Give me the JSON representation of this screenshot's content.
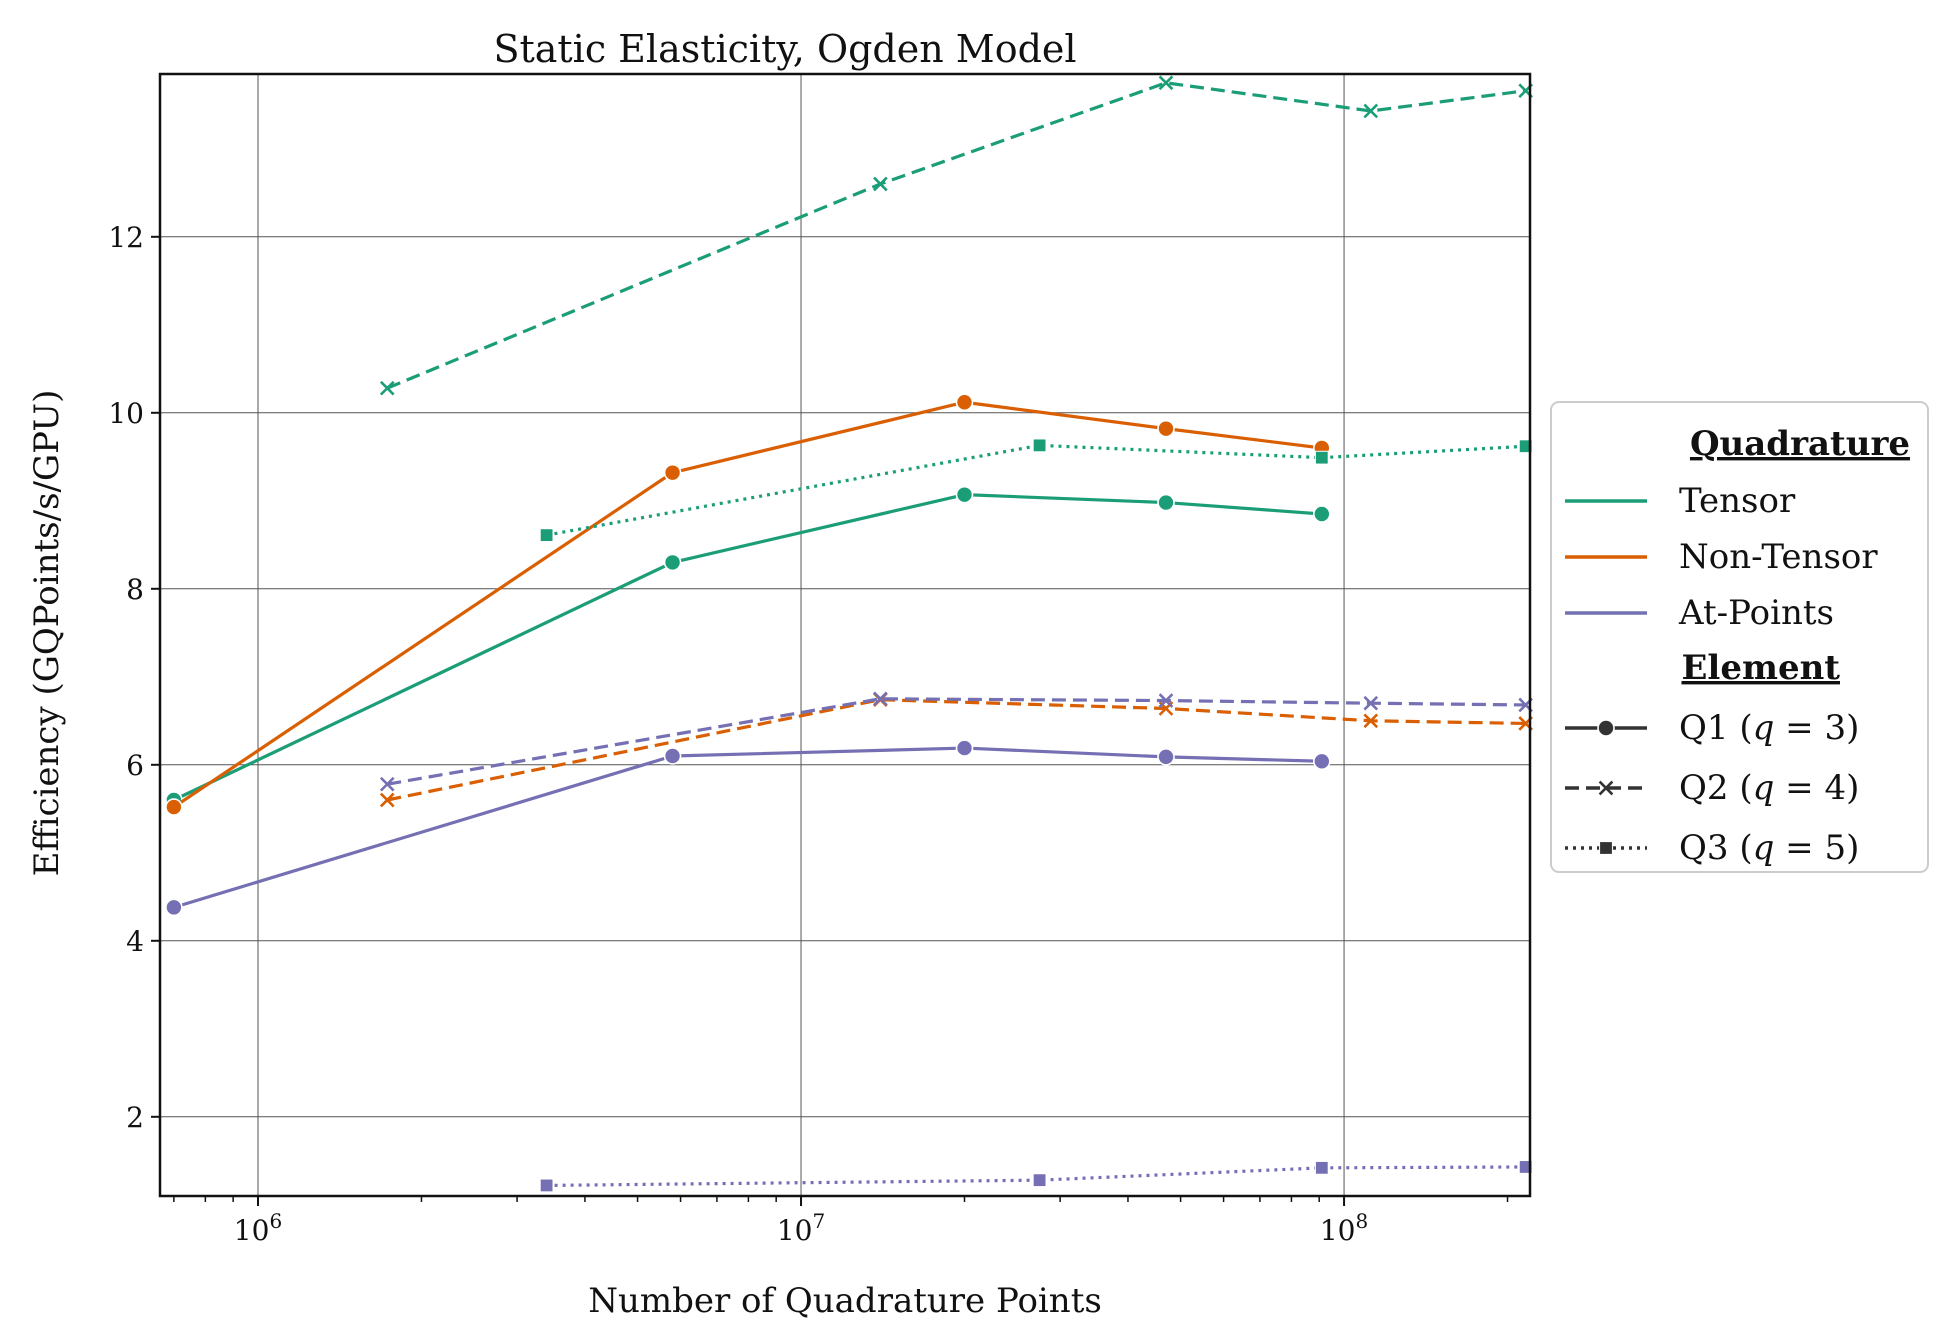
{
  "chart_data": {
    "type": "line",
    "title": "Static Elasticity, Ogden Model",
    "xlabel": "Number of Quadrature Points",
    "ylabel": "Efficiency (GQPoints/s/GPU)",
    "xscale": "log",
    "xlim": [
      660000,
      220000000
    ],
    "ylim": [
      1.1,
      13.85
    ],
    "x_tick_labels": [
      {
        "value": 1000000,
        "base": "10",
        "exp": "6"
      },
      {
        "value": 10000000,
        "base": "10",
        "exp": "7"
      },
      {
        "value": 100000000,
        "base": "10",
        "exp": "8"
      }
    ],
    "y_ticks": [
      2,
      4,
      6,
      8,
      10,
      12
    ],
    "grid": true,
    "legend": {
      "placement": "right, outside",
      "quadrature_title": "Quadrature",
      "element_title": "Element",
      "quadrature": [
        {
          "label": "Tensor",
          "color": "#1b9e77"
        },
        {
          "label": "Non-Tensor",
          "color": "#d95f02"
        },
        {
          "label": "At-Points",
          "color": "#7570b3"
        }
      ],
      "element": [
        {
          "prefix": "Q1 (",
          "var": "q",
          "suffix": " = 3)",
          "dash": "solid",
          "marker": "circle"
        },
        {
          "prefix": "Q2 (",
          "var": "q",
          "suffix": " = 4)",
          "dash": "dashed",
          "marker": "x"
        },
        {
          "prefix": "Q3 (",
          "var": "q",
          "suffix": " = 5)",
          "dash": "dotted",
          "marker": "square"
        }
      ]
    },
    "series": [
      {
        "quadrature": "Tensor",
        "element": "Q1",
        "color": "#1b9e77",
        "dash": "solid",
        "marker": "circle",
        "x": [
          700000,
          5800000,
          20000000,
          47000000,
          91000000
        ],
        "y": [
          5.6,
          8.3,
          9.07,
          8.98,
          8.85
        ]
      },
      {
        "quadrature": "Non-Tensor",
        "element": "Q1",
        "color": "#d95f02",
        "dash": "solid",
        "marker": "circle",
        "x": [
          700000,
          5800000,
          20000000,
          47000000,
          91000000
        ],
        "y": [
          5.52,
          9.32,
          10.12,
          9.82,
          9.6
        ]
      },
      {
        "quadrature": "At-Points",
        "element": "Q1",
        "color": "#7570b3",
        "dash": "solid",
        "marker": "circle",
        "x": [
          700000,
          5800000,
          20000000,
          47000000,
          91000000
        ],
        "y": [
          4.38,
          6.1,
          6.19,
          6.09,
          6.04
        ]
      },
      {
        "quadrature": "Tensor",
        "element": "Q2",
        "color": "#1b9e77",
        "dash": "dashed",
        "marker": "x",
        "x": [
          1730000,
          14000000,
          47000000,
          112000000,
          216000000
        ],
        "y": [
          10.28,
          12.6,
          13.75,
          13.43,
          13.66
        ]
      },
      {
        "quadrature": "Non-Tensor",
        "element": "Q2",
        "color": "#d95f02",
        "dash": "dashed",
        "marker": "x",
        "x": [
          1730000,
          14000000,
          47000000,
          112000000,
          216000000
        ],
        "y": [
          5.6,
          6.74,
          6.64,
          6.5,
          6.47
        ]
      },
      {
        "quadrature": "At-Points",
        "element": "Q2",
        "color": "#7570b3",
        "dash": "dashed",
        "marker": "x",
        "x": [
          1730000,
          14000000,
          47000000,
          112000000,
          216000000
        ],
        "y": [
          5.78,
          6.75,
          6.73,
          6.7,
          6.68
        ]
      },
      {
        "quadrature": "Tensor",
        "element": "Q3",
        "color": "#1b9e77",
        "dash": "dotted",
        "marker": "square",
        "x": [
          3400000,
          27500000,
          91000000,
          216000000
        ],
        "y": [
          8.61,
          9.63,
          9.49,
          9.62
        ]
      },
      {
        "quadrature": "At-Points",
        "element": "Q3",
        "color": "#7570b3",
        "dash": "dotted",
        "marker": "square",
        "x": [
          3400000,
          27500000,
          91000000,
          216000000
        ],
        "y": [
          1.22,
          1.28,
          1.42,
          1.43
        ]
      }
    ]
  }
}
